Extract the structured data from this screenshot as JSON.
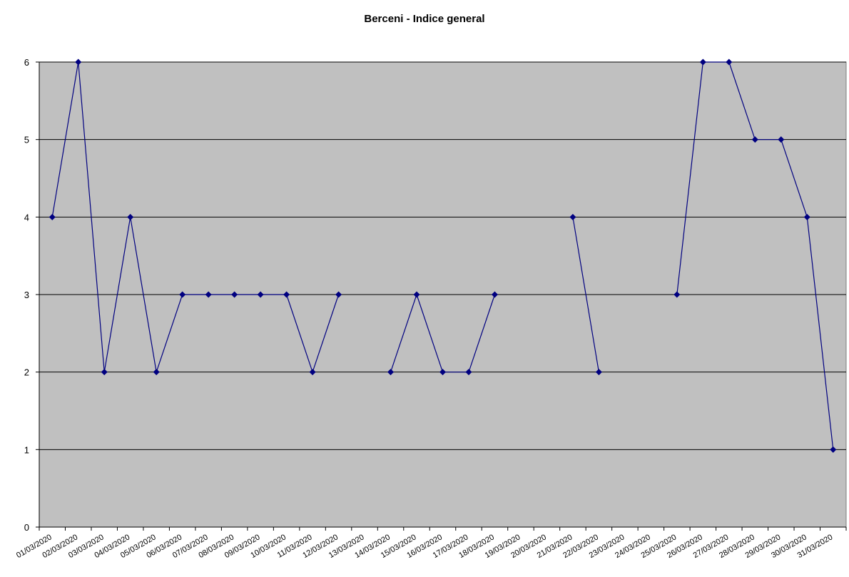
{
  "chart_data": {
    "type": "line",
    "title": "Berceni - Indice general",
    "categories": [
      "01/03/2020",
      "02/03/2020",
      "03/03/2020",
      "04/03/2020",
      "05/03/2020",
      "06/03/2020",
      "07/03/2020",
      "08/03/2020",
      "09/03/2020",
      "10/03/2020",
      "11/03/2020",
      "12/03/2020",
      "13/03/2020",
      "14/03/2020",
      "15/03/2020",
      "16/03/2020",
      "17/03/2020",
      "18/03/2020",
      "19/03/2020",
      "20/03/2020",
      "21/03/2020",
      "22/03/2020",
      "23/03/2020",
      "24/03/2020",
      "25/03/2020",
      "26/03/2020",
      "27/03/2020",
      "28/03/2020",
      "29/03/2020",
      "30/03/2020",
      "31/03/2020"
    ],
    "values": [
      4,
      6,
      2,
      4,
      2,
      3,
      3,
      3,
      3,
      3,
      2,
      3,
      null,
      2,
      3,
      2,
      2,
      3,
      null,
      null,
      4,
      2,
      null,
      null,
      3,
      6,
      6,
      5,
      5,
      4,
      1
    ],
    "color": "#000080",
    "ylim": [
      0,
      6
    ],
    "yticks": [
      0,
      1,
      2,
      3,
      4,
      5,
      6
    ],
    "grid": true,
    "plot_background": "#c0c0c0"
  }
}
